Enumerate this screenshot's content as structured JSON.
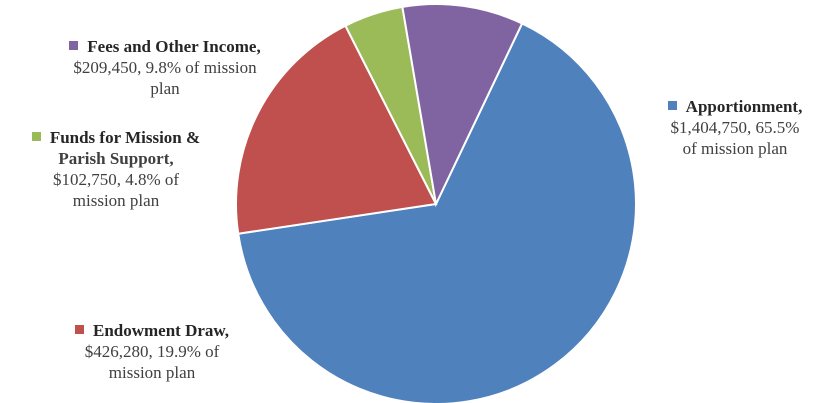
{
  "chart_data": {
    "type": "pie",
    "slices": [
      {
        "name": "Apportionment",
        "value": 1404750,
        "percent": 65.5,
        "value_text": "$1,404,750",
        "percent_text": "65.5%",
        "suffix": "of mission plan",
        "color": "#4f81bd"
      },
      {
        "name": "Endowment Draw",
        "value": 426280,
        "percent": 19.9,
        "value_text": "$426,280",
        "percent_text": "19.9%",
        "suffix": "of mission plan",
        "color": "#c0504d"
      },
      {
        "name": "Funds for Mission & Parish Support",
        "value": 102750,
        "percent": 4.8,
        "value_text": "$102,750",
        "percent_text": "4.8%",
        "suffix": "of mission plan",
        "color": "#9bbb59"
      },
      {
        "name": "Fees and Other Income",
        "value": 209450,
        "percent": 9.8,
        "value_text": "$209,450",
        "percent_text": "9.8%",
        "suffix": "of mission plan",
        "color": "#8064a2"
      }
    ]
  },
  "labels": {
    "apportionment": {
      "line1": "Apportionment,",
      "line2": "$1,404,750, 65.5%",
      "line3": "of mission plan"
    },
    "fees": {
      "line1": "Fees and Other Income,",
      "line2": "$209,450, 9.8% of mission",
      "line3": "plan"
    },
    "funds": {
      "line1": "Funds for Mission &",
      "line2": "Parish Support,",
      "line3": "$102,750, 4.8% of",
      "line4": "mission plan"
    },
    "endowment": {
      "line1": "Endowment Draw,",
      "line2": "$426,280, 19.9% of",
      "line3": "mission plan"
    }
  }
}
